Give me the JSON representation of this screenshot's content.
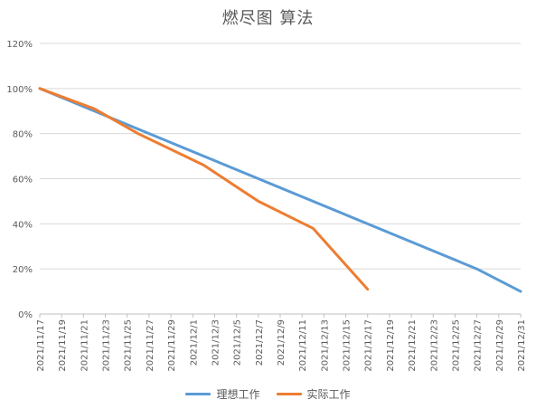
{
  "chart_data": {
    "type": "line",
    "title": "燃尽图 算法",
    "xlabel": "",
    "ylabel": "",
    "x": [
      "2021/11/17",
      "2021/11/18",
      "2021/11/19",
      "2021/11/20",
      "2021/11/21",
      "2021/11/22",
      "2021/11/23",
      "2021/11/24",
      "2021/11/25",
      "2021/11/26",
      "2021/11/27",
      "2021/11/28",
      "2021/11/29",
      "2021/11/30",
      "2021/12/1",
      "2021/12/2",
      "2021/12/3",
      "2021/12/4",
      "2021/12/5",
      "2021/12/6",
      "2021/12/7",
      "2021/12/8",
      "2021/12/9",
      "2021/12/10",
      "2021/12/11",
      "2021/12/12",
      "2021/12/13",
      "2021/12/14",
      "2021/12/15",
      "2021/12/16",
      "2021/12/17",
      "2021/12/18",
      "2021/12/19",
      "2021/12/20",
      "2021/12/21",
      "2021/12/22",
      "2021/12/23",
      "2021/12/24",
      "2021/12/25",
      "2021/12/26",
      "2021/12/27",
      "2021/12/28",
      "2021/12/29",
      "2021/12/30",
      "2021/12/31"
    ],
    "tick_labels": [
      "2021/11/17",
      "2021/11/19",
      "2021/11/21",
      "2021/11/23",
      "2021/11/25",
      "2021/11/27",
      "2021/11/29",
      "2021/12/1",
      "2021/12/3",
      "2021/12/5",
      "2021/12/7",
      "2021/12/9",
      "2021/12/11",
      "2021/12/13",
      "2021/12/15",
      "2021/12/17",
      "2021/12/19",
      "2021/12/21",
      "2021/12/23",
      "2021/12/25",
      "2021/12/27",
      "2021/12/29",
      "2021/12/31"
    ],
    "y_ticks": [
      "0%",
      "20%",
      "40%",
      "60%",
      "80%",
      "100%",
      "120%"
    ],
    "ylim": [
      0,
      120
    ],
    "grid": true,
    "legend_position": "bottom",
    "series": [
      {
        "name": "理想工作",
        "color": "#5b9bd5",
        "points": [
          {
            "x": "2021/11/17",
            "y": 100
          },
          {
            "x": "2021/12/27",
            "y": 20
          },
          {
            "x": "2021/12/31",
            "y": 10
          }
        ]
      },
      {
        "name": "实际工作",
        "color": "#ed7d31",
        "points": [
          {
            "x": "2021/11/17",
            "y": 100
          },
          {
            "x": "2021/11/22",
            "y": 91
          },
          {
            "x": "2021/11/26",
            "y": 80
          },
          {
            "x": "2021/12/2",
            "y": 66
          },
          {
            "x": "2021/12/7",
            "y": 50
          },
          {
            "x": "2021/12/12",
            "y": 38
          },
          {
            "x": "2021/12/17",
            "y": 11
          }
        ]
      }
    ]
  }
}
